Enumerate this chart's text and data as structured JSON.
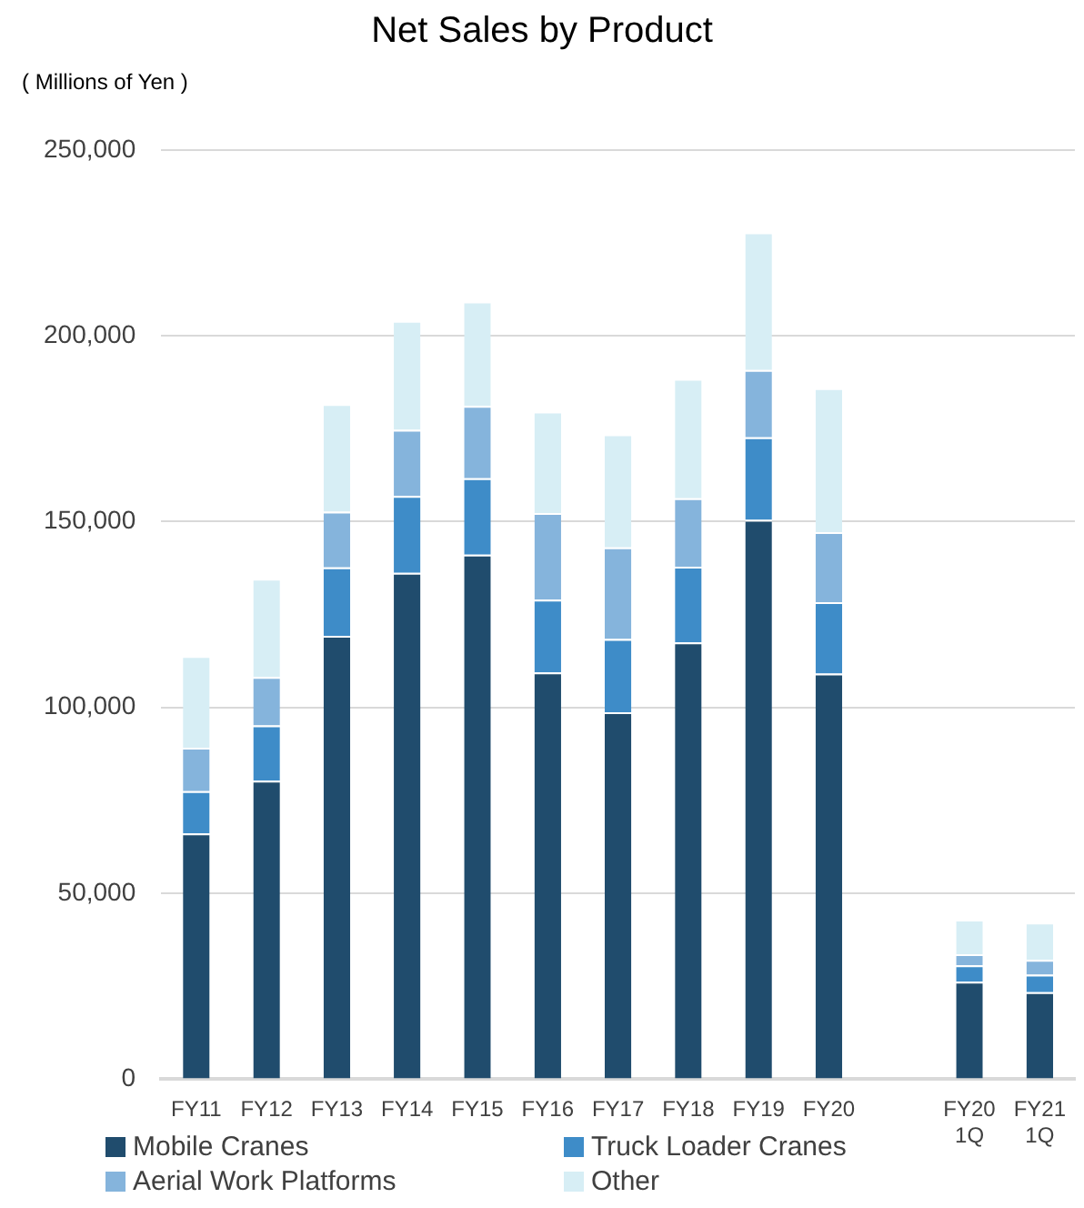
{
  "chart_data": {
    "type": "bar",
    "title": "Net Sales by Product",
    "ylabel": "( Millions of Yen )",
    "stacked": true,
    "categories": [
      "FY11",
      "FY12",
      "FY13",
      "FY14",
      "FY15",
      "FY16",
      "FY17",
      "FY18",
      "FY19",
      "FY20",
      null,
      "FY20\n1Q",
      "FY21\n1Q"
    ],
    "series": [
      {
        "name": "Mobile Cranes",
        "color": "#204c6d",
        "values": [
          66100,
          80300,
          119300,
          136200,
          141100,
          109400,
          98700,
          117500,
          150500,
          109100,
          null,
          26200,
          23400
        ]
      },
      {
        "name": "Truck Loader Cranes",
        "color": "#3e8cc8",
        "values": [
          11400,
          14900,
          18400,
          20700,
          20600,
          19600,
          19700,
          20400,
          22200,
          19200,
          null,
          4400,
          4700
        ]
      },
      {
        "name": "Aerial Work Platforms",
        "color": "#85b4dc",
        "values": [
          11700,
          13000,
          15000,
          17800,
          19400,
          23300,
          24700,
          18400,
          18100,
          18900,
          null,
          3000,
          4000
        ]
      },
      {
        "name": "Other",
        "color": "#d7eef5",
        "values": [
          24600,
          26400,
          28900,
          29300,
          28100,
          27300,
          30400,
          32100,
          37000,
          38700,
          null,
          9300,
          10000
        ]
      }
    ],
    "ylim": [
      0,
      250000
    ],
    "yticks": [
      0,
      {
        "value": 50000,
        "label": "50,000"
      },
      {
        "value": 100000,
        "label": "100,000"
      },
      {
        "value": 150000,
        "label": "150,000"
      },
      {
        "value": 200000,
        "label": "200,000"
      },
      {
        "value": 250000,
        "label": "250,000"
      }
    ],
    "grid": "y",
    "legend": "bottom"
  }
}
